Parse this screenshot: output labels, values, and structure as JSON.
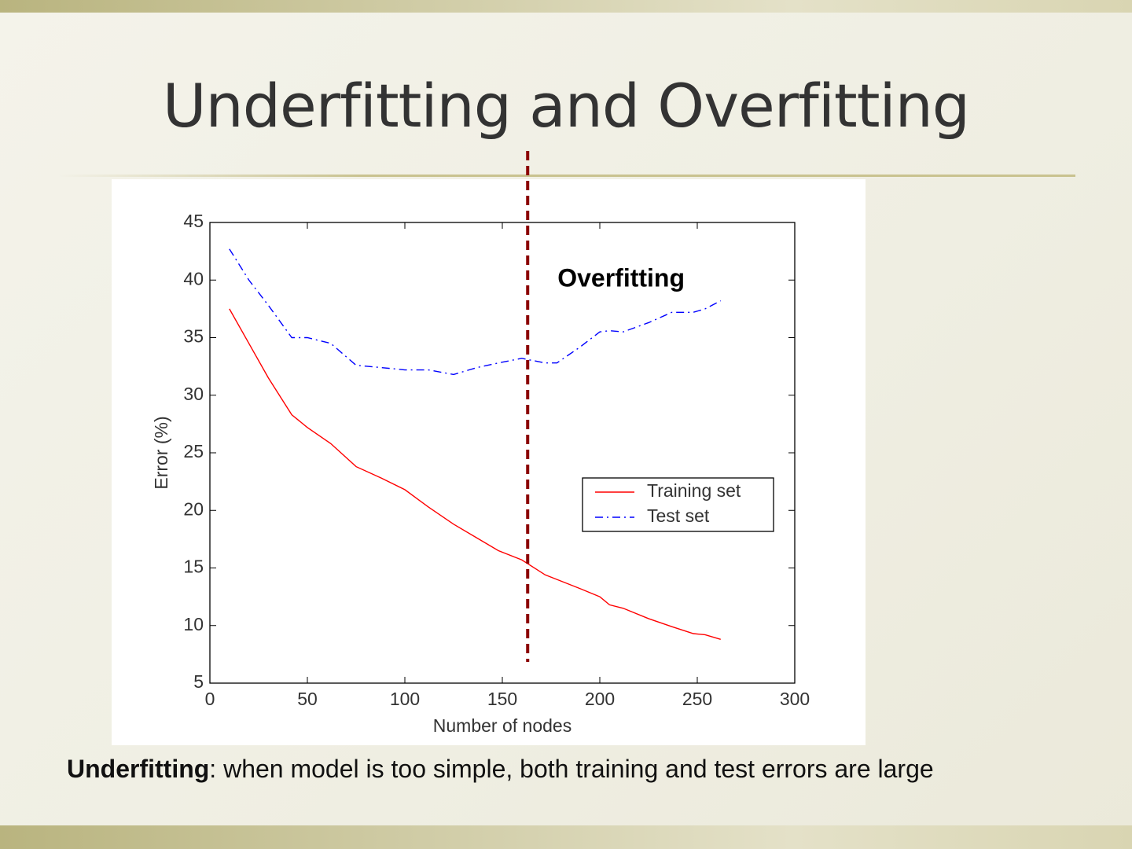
{
  "slide_title": "Underfitting and Overfitting",
  "caption": {
    "term": "Underfitting",
    "text": ": when model is too simple, both training and test errors are large"
  },
  "chart_data": {
    "type": "line",
    "xlabel": "Number of nodes",
    "ylabel": "Error (%)",
    "annotation": "Overfitting",
    "reference_line_x": 163,
    "xlim": [
      0,
      300
    ],
    "xticks": [
      0,
      50,
      100,
      150,
      200,
      250,
      300
    ],
    "ylim": [
      5,
      45
    ],
    "yticks": [
      5,
      10,
      15,
      20,
      25,
      30,
      35,
      40,
      45
    ],
    "legend": "right",
    "x": [
      10,
      20,
      30,
      42,
      50,
      62,
      75,
      88,
      100,
      112,
      125,
      137,
      148,
      160,
      172,
      178,
      190,
      200,
      205,
      212,
      225,
      237,
      248,
      254,
      262
    ],
    "series": [
      {
        "name": "Training set",
        "color": "#ff0000",
        "style": "solid",
        "values": [
          37.5,
          34.5,
          31.5,
          28.3,
          27.2,
          25.8,
          23.8,
          22.8,
          21.8,
          20.3,
          18.8,
          17.6,
          16.5,
          15.7,
          14.4,
          14.0,
          13.2,
          12.5,
          11.8,
          11.5,
          10.6,
          9.9,
          9.3,
          9.2,
          8.8
        ]
      },
      {
        "name": "Test set",
        "color": "#0000ff",
        "style": "dashdot",
        "values": [
          42.7,
          40.0,
          37.8,
          35.0,
          35.0,
          34.5,
          32.6,
          32.4,
          32.2,
          32.2,
          31.8,
          32.4,
          32.8,
          33.2,
          32.8,
          32.8,
          34.2,
          35.5,
          35.6,
          35.5,
          36.3,
          37.2,
          37.2,
          37.5,
          38.2
        ]
      }
    ]
  }
}
